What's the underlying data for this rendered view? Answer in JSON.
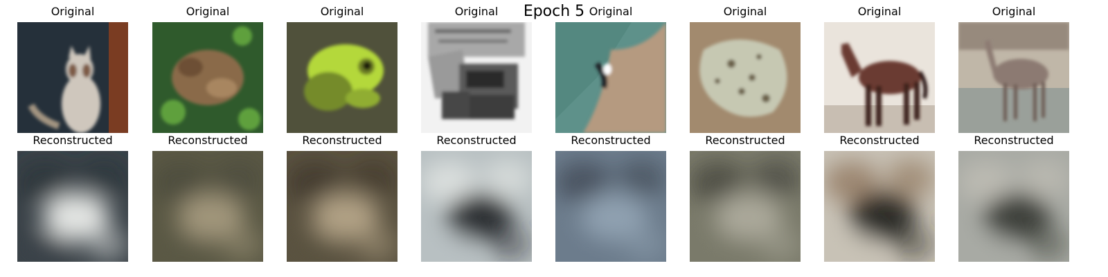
{
  "figure": {
    "title": "Epoch 5"
  },
  "rows": [
    {
      "key": "original",
      "label": "Original"
    },
    {
      "key": "reconstructed",
      "label": "Reconstructed"
    }
  ],
  "samples": [
    {
      "original": {
        "subject": "cat",
        "colors": {
          "bg": "#25303a",
          "main": "#cfc7bd",
          "accent": "#7a3c22"
        }
      },
      "reconstructed": {
        "colors": {
          "bg": "#3a4248",
          "main": "#e2e4e2",
          "accent": "#2a3238"
        }
      }
    },
    {
      "original": {
        "subject": "frog",
        "colors": {
          "bg": "#2f5a2c",
          "main": "#8a6a4a",
          "accent": "#5fa03e"
        }
      },
      "reconstructed": {
        "colors": {
          "bg": "#5a5844",
          "main": "#a0957a",
          "accent": "#4a4a3a"
        }
      }
    },
    {
      "original": {
        "subject": "frog",
        "colors": {
          "bg": "#50513b",
          "main": "#b4d83a",
          "accent": "#748b2c"
        }
      },
      "reconstructed": {
        "colors": {
          "bg": "#5a5240",
          "main": "#b0a084",
          "accent": "#3a3428"
        }
      }
    },
    {
      "original": {
        "subject": "truck",
        "colors": {
          "bg": "#f2f2f2",
          "main": "#5a5a5a",
          "accent": "#9a9a9a"
        }
      },
      "reconstructed": {
        "colors": {
          "bg": "#b8c0c2",
          "main": "#2a2e32",
          "accent": "#e8ebe8"
        }
      }
    },
    {
      "original": {
        "subject": "bird",
        "colors": {
          "bg": "#5e918a",
          "main": "#b59a80",
          "accent": "#1c2228"
        }
      },
      "reconstructed": {
        "colors": {
          "bg": "#6c7c8c",
          "main": "#8fa0b0",
          "accent": "#3a4450"
        }
      }
    },
    {
      "original": {
        "subject": "frog",
        "colors": {
          "bg": "#a28a6e",
          "main": "#c6c8b2",
          "accent": "#6a6048"
        }
      },
      "reconstructed": {
        "colors": {
          "bg": "#7a7a6a",
          "main": "#aaa89a",
          "accent": "#3e3e36"
        }
      }
    },
    {
      "original": {
        "subject": "horse",
        "colors": {
          "bg": "#eae4dc",
          "main": "#6a3a30",
          "accent": "#c8beb2"
        }
      },
      "reconstructed": {
        "colors": {
          "bg": "#c8c2b6",
          "main": "#2c2a26",
          "accent": "#8a6e54"
        }
      }
    },
    {
      "original": {
        "subject": "deer",
        "colors": {
          "bg": "#c0b7a8",
          "main": "#8c7a72",
          "accent": "#9aa09a"
        }
      },
      "reconstructed": {
        "colors": {
          "bg": "#a8aaa4",
          "main": "#3e403a",
          "accent": "#c4c2b8"
        }
      }
    }
  ]
}
